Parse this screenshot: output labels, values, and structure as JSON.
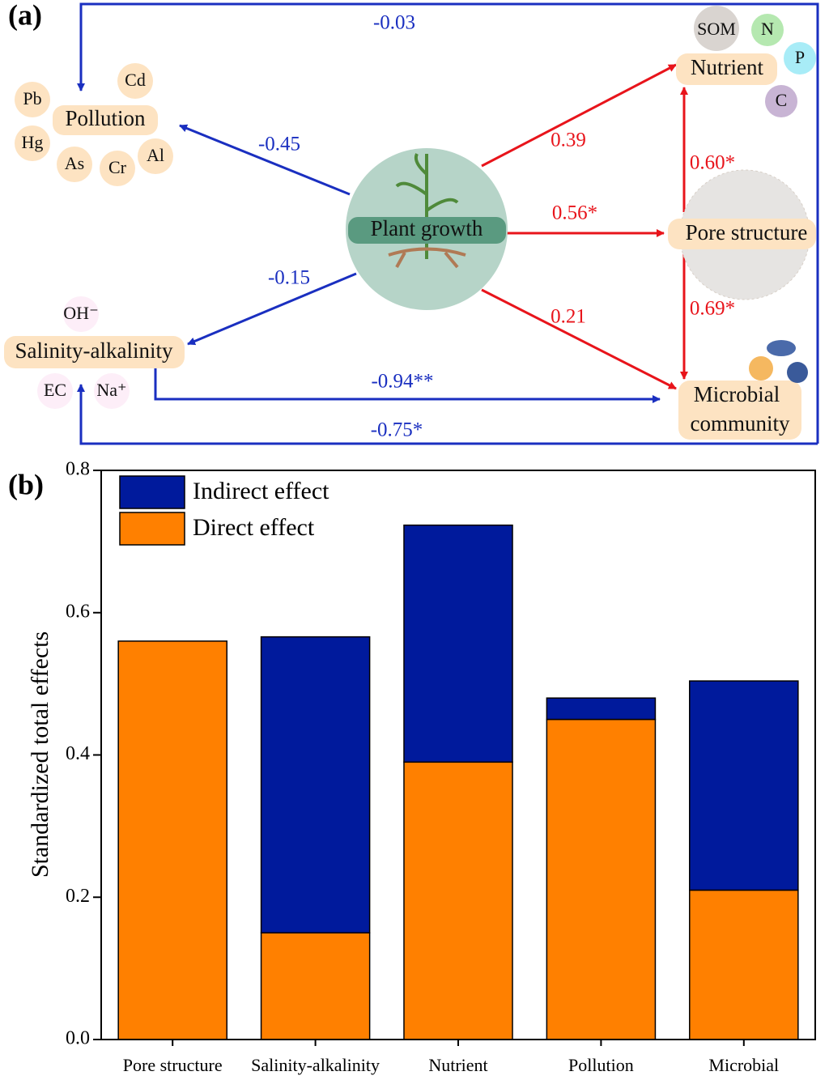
{
  "panel_a": {
    "panel_label": "(a)",
    "nodes": {
      "plant": "Plant growth",
      "pollution": "Pollution",
      "nutrient": "Nutrient",
      "pore": "Pore structure",
      "salinity": "Salinity-alkalinity",
      "microbial": [
        "Microbial",
        "community"
      ]
    },
    "pollution_items": [
      "Pb",
      "Cd",
      "Hg",
      "As",
      "Cr",
      "Al"
    ],
    "nutrient_items": [
      "SOM",
      "N",
      "P",
      "C"
    ],
    "salinity_items": [
      "OH⁻",
      "EC",
      "Na⁺"
    ],
    "paths": {
      "microbial_pollution": "-0.03",
      "plant_pollution": "-0.45",
      "plant_nutrient": "0.39",
      "plant_pore": "0.56*",
      "plant_microbial": "0.21",
      "plant_salinity": "-0.15",
      "pore_nutrient": "0.60*",
      "pore_microbial": "0.69*",
      "salinity_microbial": "-0.94**",
      "microbial_salinity": "-0.75*"
    }
  },
  "chart_data": {
    "type": "stacked_bar",
    "panel_label": "(b)",
    "y_label": "Standardized total effects",
    "categories": [
      "Pore structure",
      "Salinity-alkalinity",
      "Nutrient",
      "Pollution",
      "Microbial"
    ],
    "series": [
      {
        "name": "Direct effect",
        "color": "#ff8000",
        "values": [
          0.56,
          0.15,
          0.39,
          0.45,
          0.21
        ]
      },
      {
        "name": "Indirect effect",
        "color": "#001a9c",
        "values": [
          0,
          0.416,
          0.333,
          0.03,
          0.294
        ]
      }
    ],
    "ylim": [
      0,
      0.8
    ],
    "yticks": [
      {
        "value": 0,
        "label": "0.0"
      },
      0.2,
      0.4,
      0.6,
      0.8
    ]
  }
}
